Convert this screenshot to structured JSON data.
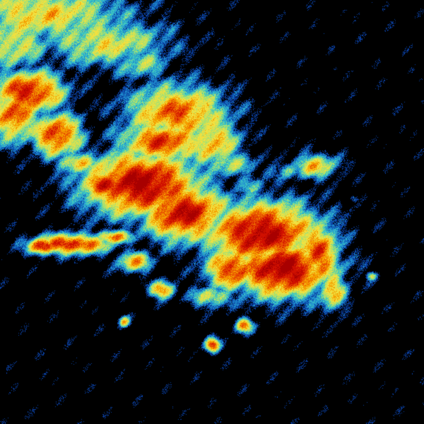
{
  "image": {
    "kind": "weather-radar-reflectivity",
    "background": "#000000",
    "color_scale": [
      "#0a3fa0",
      "#1f8fd0",
      "#40c8c0",
      "#a8e070",
      "#f0e040",
      "#f5a000",
      "#e85000",
      "#d01000",
      "#a80000"
    ]
  }
}
